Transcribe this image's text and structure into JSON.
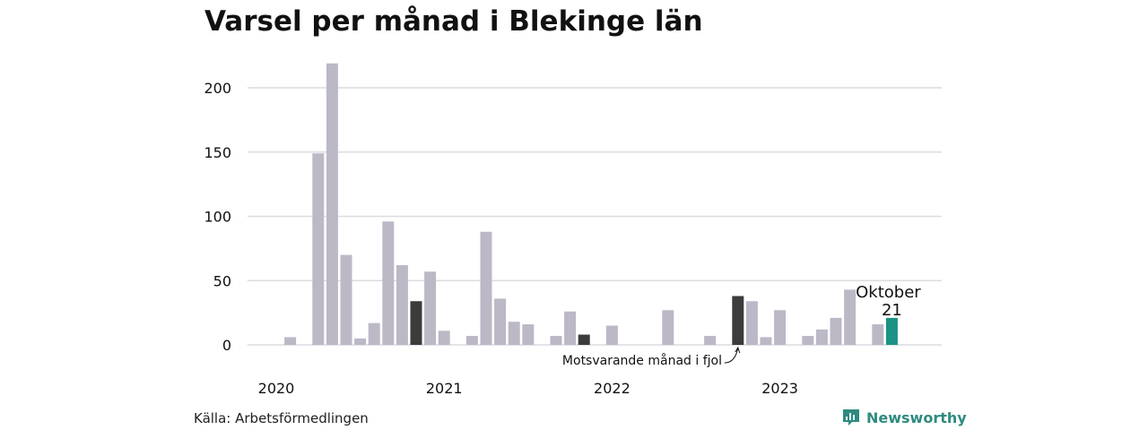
{
  "chart_data": {
    "type": "bar",
    "title": "Varsel per månad i Blekinge län",
    "xlabel": "",
    "ylabel": "",
    "ylim": [
      0,
      225
    ],
    "yticks": [
      0,
      50,
      100,
      150,
      200
    ],
    "grid": true,
    "year_labels": [
      "2020",
      "2021",
      "2022",
      "2023"
    ],
    "values": [
      0,
      6,
      0,
      149,
      219,
      70,
      5,
      17,
      96,
      62,
      34,
      57,
      11,
      0,
      7,
      88,
      36,
      18,
      16,
      0,
      7,
      26,
      8,
      0,
      15,
      0,
      0,
      0,
      27,
      0,
      0,
      7,
      0,
      38,
      34,
      6,
      27,
      0,
      7,
      12,
      21,
      43,
      0,
      16,
      21
    ],
    "highlight_dark_indices": [
      10,
      22,
      33
    ],
    "current_index": 44,
    "colors": {
      "default": "#bcb8c6",
      "dark": "#3c3c3c",
      "current": "#1a9385",
      "grid": "#dcdce0"
    },
    "annotations": {
      "current_month": "Oktober",
      "current_value": "21",
      "last_year": "Motsvarande månad i fjol"
    }
  },
  "source": "Källa: Arbetsförmedlingen",
  "brand": {
    "name": "Newsworthy",
    "icon": "newsworthy-logo-icon",
    "color": "#2e8b7f"
  }
}
